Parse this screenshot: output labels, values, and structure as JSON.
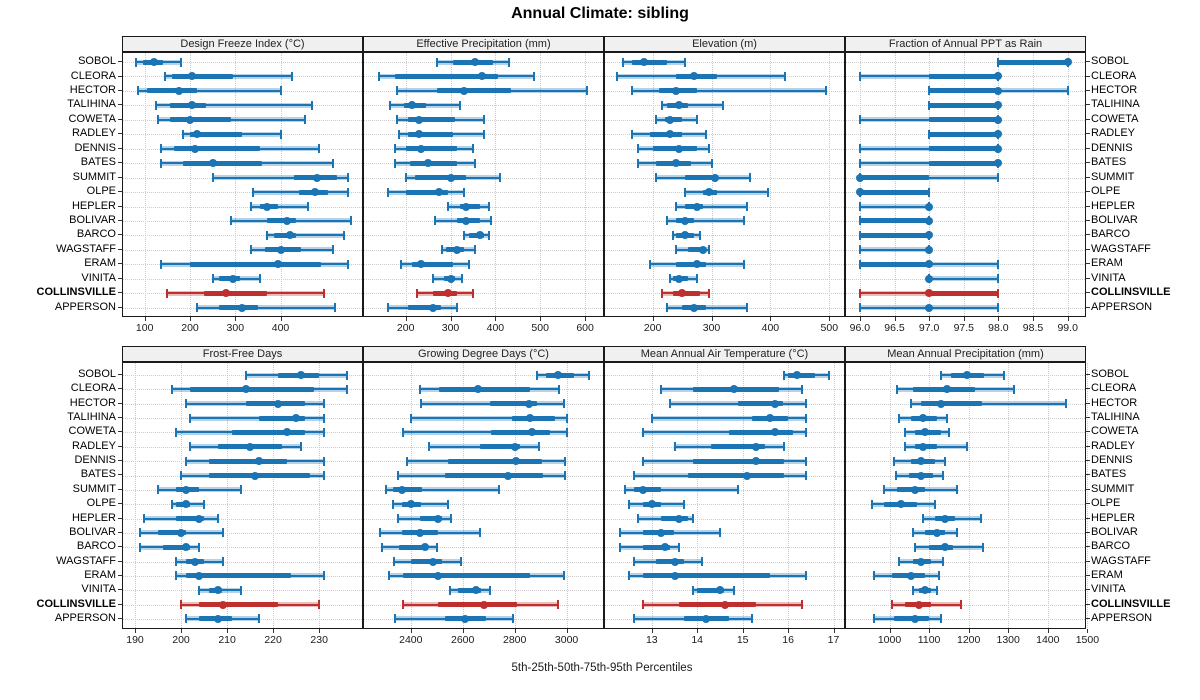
{
  "page": {
    "title": "Annual Climate: sibling",
    "caption": "5th-25th-50th-75th-95th Percentiles"
  },
  "colors": {
    "series": "#1b74b4",
    "series_light": "rgba(27,116,180,0.32)",
    "highlight": "#be2f2d",
    "highlight_light": "rgba(190,47,45,0.32)",
    "grid": "#c9c9c9",
    "strip_bg": "#f0f0f0",
    "border": "#1a1a1a"
  },
  "stations": [
    "SOBOL",
    "CLEORA",
    "HECTOR",
    "TALIHINA",
    "COWETA",
    "RADLEY",
    "DENNIS",
    "BATES",
    "SUMMIT",
    "OLPE",
    "HEPLER",
    "BOLIVAR",
    "BARCO",
    "WAGSTAFF",
    "ERAM",
    "VINITA",
    "COLLINSVILLE",
    "APPERSON"
  ],
  "highlight_station": "COLLINSVILLE",
  "chart_data": {
    "type": "dotplot-percentiles-trellis",
    "percentiles": [
      5,
      25,
      50,
      75,
      95
    ],
    "grid": "2 rows x 4 cols",
    "panels": [
      {
        "title": "Design Freeze Index (°C)",
        "xlim": [
          52,
          580
        ],
        "ticks": [
          100,
          200,
          300,
          400
        ],
        "tick_labels": [
          "100",
          "200",
          "300",
          "400"
        ],
        "values": [
          [
            80,
            95,
            120,
            140,
            180
          ],
          [
            145,
            160,
            205,
            295,
            425
          ],
          [
            85,
            105,
            175,
            215,
            400
          ],
          [
            125,
            155,
            205,
            235,
            470
          ],
          [
            130,
            155,
            200,
            290,
            455
          ],
          [
            185,
            200,
            215,
            315,
            400
          ],
          [
            135,
            165,
            210,
            355,
            485
          ],
          [
            135,
            185,
            250,
            360,
            515
          ],
          [
            250,
            430,
            480,
            525,
            550
          ],
          [
            340,
            440,
            475,
            505,
            550
          ],
          [
            335,
            355,
            370,
            395,
            460
          ],
          [
            290,
            370,
            415,
            435,
            555
          ],
          [
            370,
            385,
            420,
            435,
            540
          ],
          [
            335,
            365,
            400,
            445,
            515
          ],
          [
            135,
            200,
            395,
            490,
            550
          ],
          [
            250,
            265,
            295,
            310,
            355
          ],
          [
            150,
            230,
            280,
            370,
            495
          ],
          [
            215,
            265,
            315,
            350,
            520
          ]
        ]
      },
      {
        "title": "Effective Precipitation (mm)",
        "xlim": [
          107,
          640
        ],
        "ticks": [
          200,
          300,
          400,
          500,
          600
        ],
        "tick_labels": [
          "200",
          "300",
          "400",
          "500",
          "600"
        ],
        "values": [
          [
            270,
            305,
            355,
            395,
            430
          ],
          [
            140,
            175,
            370,
            405,
            485
          ],
          [
            180,
            270,
            330,
            435,
            605
          ],
          [
            165,
            195,
            215,
            245,
            320
          ],
          [
            180,
            205,
            230,
            310,
            375
          ],
          [
            185,
            205,
            230,
            305,
            375
          ],
          [
            175,
            200,
            235,
            315,
            350
          ],
          [
            175,
            210,
            250,
            315,
            355
          ],
          [
            200,
            220,
            300,
            335,
            410
          ],
          [
            160,
            200,
            275,
            295,
            330
          ],
          [
            295,
            320,
            335,
            365,
            385
          ],
          [
            265,
            315,
            335,
            365,
            390
          ],
          [
            330,
            340,
            365,
            375,
            385
          ],
          [
            280,
            290,
            315,
            330,
            355
          ],
          [
            190,
            215,
            235,
            305,
            340
          ],
          [
            260,
            285,
            300,
            310,
            325
          ],
          [
            225,
            260,
            295,
            315,
            350
          ],
          [
            160,
            205,
            260,
            280,
            315
          ]
        ]
      },
      {
        "title": "Elevation (m)",
        "xlim": [
          119,
          525
        ],
        "ticks": [
          200,
          300,
          400,
          500
        ],
        "tick_labels": [
          "200",
          "300",
          "400",
          "500"
        ],
        "values": [
          [
            150,
            165,
            185,
            225,
            255
          ],
          [
            140,
            240,
            270,
            310,
            425
          ],
          [
            165,
            210,
            240,
            275,
            495
          ],
          [
            215,
            225,
            245,
            260,
            320
          ],
          [
            205,
            220,
            230,
            250,
            275
          ],
          [
            165,
            195,
            230,
            250,
            290
          ],
          [
            175,
            200,
            245,
            275,
            295
          ],
          [
            175,
            205,
            240,
            265,
            300
          ],
          [
            205,
            255,
            305,
            310,
            365
          ],
          [
            255,
            285,
            295,
            310,
            395
          ],
          [
            240,
            255,
            275,
            285,
            360
          ],
          [
            225,
            240,
            255,
            270,
            355
          ],
          [
            235,
            240,
            255,
            270,
            280
          ],
          [
            240,
            260,
            285,
            290,
            295
          ],
          [
            195,
            240,
            275,
            290,
            355
          ],
          [
            230,
            235,
            245,
            260,
            275
          ],
          [
            215,
            235,
            250,
            280,
            295
          ],
          [
            225,
            250,
            270,
            290,
            360
          ]
        ]
      },
      {
        "title": "Fraction of Annual PPT as Rain",
        "xlim": [
          95.8,
          99.25
        ],
        "ticks": [
          96.0,
          96.5,
          97.0,
          97.5,
          98.0,
          98.5,
          99.0
        ],
        "tick_labels": [
          "96.0",
          "96.5",
          "97.0",
          "97.5",
          "98.0",
          "98.5",
          "99.0"
        ],
        "values": [
          [
            98,
            98,
            99,
            99,
            99
          ],
          [
            96,
            97,
            98,
            98,
            98
          ],
          [
            97,
            97,
            98,
            98,
            99
          ],
          [
            97,
            97,
            98,
            98,
            98
          ],
          [
            96,
            97,
            98,
            98,
            98
          ],
          [
            97,
            97,
            98,
            98,
            98
          ],
          [
            96,
            97,
            98,
            98,
            98
          ],
          [
            96,
            97,
            98,
            98,
            98
          ],
          [
            96,
            96,
            96,
            97,
            98
          ],
          [
            96,
            96,
            96,
            97,
            97
          ],
          [
            96,
            97,
            97,
            97,
            97
          ],
          [
            96,
            96,
            97,
            97,
            97
          ],
          [
            96,
            96,
            97,
            97,
            97
          ],
          [
            96,
            97,
            97,
            97,
            97
          ],
          [
            96,
            96,
            97,
            97,
            98
          ],
          [
            97,
            97,
            97,
            97,
            98
          ],
          [
            96,
            97,
            97,
            98,
            98
          ],
          [
            96,
            97,
            97,
            97,
            98
          ]
        ]
      },
      {
        "title": "Frost-Free Days",
        "xlim": [
          187.4,
          239.3
        ],
        "ticks": [
          190,
          200,
          210,
          220,
          230
        ],
        "tick_labels": [
          "190",
          "200",
          "210",
          "220",
          "230"
        ],
        "values": [
          [
            214,
            221,
            226,
            230,
            236
          ],
          [
            198,
            202,
            214,
            229,
            236
          ],
          [
            201,
            214,
            221,
            227,
            231
          ],
          [
            202,
            217,
            225,
            227,
            231
          ],
          [
            199,
            211,
            223,
            227,
            231
          ],
          [
            202,
            208,
            215,
            222,
            226
          ],
          [
            201,
            206,
            217,
            223,
            231
          ],
          [
            200,
            206,
            216,
            228,
            231
          ],
          [
            195,
            199,
            201,
            204,
            213
          ],
          [
            198,
            199,
            201,
            202,
            205
          ],
          [
            192,
            199,
            204,
            205,
            208
          ],
          [
            191,
            195,
            200,
            201,
            209
          ],
          [
            191,
            196,
            201,
            202,
            204
          ],
          [
            199,
            201,
            203,
            205,
            209
          ],
          [
            199,
            201,
            204,
            224,
            231
          ],
          [
            204,
            206,
            208,
            209,
            213
          ],
          [
            200,
            204,
            209,
            221,
            230
          ],
          [
            201,
            204,
            208,
            211,
            217
          ]
        ]
      },
      {
        "title": "Growing Degree Days (°C)",
        "xlim": [
          2220,
          3140
        ],
        "ticks": [
          2400,
          2600,
          2800,
          3000
        ],
        "tick_labels": [
          "2400",
          "2600",
          "2800",
          "3000"
        ],
        "values": [
          [
            2885,
            2920,
            2965,
            3030,
            3085
          ],
          [
            2435,
            2510,
            2660,
            2860,
            2970
          ],
          [
            2440,
            2705,
            2855,
            2885,
            2990
          ],
          [
            2400,
            2790,
            2860,
            2955,
            3000
          ],
          [
            2370,
            2710,
            2865,
            2935,
            3000
          ],
          [
            2470,
            2665,
            2800,
            2820,
            2895
          ],
          [
            2385,
            2545,
            2805,
            2905,
            2995
          ],
          [
            2350,
            2530,
            2775,
            2910,
            2995
          ],
          [
            2305,
            2330,
            2365,
            2445,
            2740
          ],
          [
            2330,
            2365,
            2400,
            2440,
            2545
          ],
          [
            2350,
            2435,
            2505,
            2520,
            2555
          ],
          [
            2280,
            2365,
            2435,
            2505,
            2665
          ],
          [
            2290,
            2355,
            2455,
            2465,
            2500
          ],
          [
            2335,
            2400,
            2485,
            2520,
            2595
          ],
          [
            2315,
            2370,
            2505,
            2860,
            2990
          ],
          [
            2550,
            2580,
            2650,
            2670,
            2705
          ],
          [
            2370,
            2505,
            2680,
            2810,
            2965
          ],
          [
            2340,
            2530,
            2610,
            2690,
            2795
          ]
        ]
      },
      {
        "title": "Mean Annual Air Temperature (°C)",
        "xlim": [
          11.97,
          17.23
        ],
        "ticks": [
          13,
          14,
          15,
          16,
          17
        ],
        "tick_labels": [
          "13",
          "14",
          "15",
          "16",
          "17"
        ],
        "values": [
          [
            15.9,
            16.0,
            16.2,
            16.6,
            16.9
          ],
          [
            13.2,
            13.9,
            14.8,
            15.8,
            16.3
          ],
          [
            13.4,
            14.9,
            15.7,
            15.9,
            16.4
          ],
          [
            13.0,
            15.2,
            15.6,
            16.0,
            16.4
          ],
          [
            12.8,
            14.7,
            15.7,
            16.1,
            16.4
          ],
          [
            13.5,
            14.3,
            15.3,
            15.5,
            15.9
          ],
          [
            12.8,
            13.9,
            15.3,
            15.9,
            16.4
          ],
          [
            12.6,
            13.8,
            15.1,
            15.9,
            16.4
          ],
          [
            12.4,
            12.6,
            12.8,
            13.2,
            14.9
          ],
          [
            12.5,
            12.8,
            13.0,
            13.2,
            13.7
          ],
          [
            12.7,
            13.2,
            13.6,
            13.8,
            13.9
          ],
          [
            12.3,
            12.8,
            13.2,
            13.5,
            14.5
          ],
          [
            12.3,
            12.8,
            13.3,
            13.4,
            13.6
          ],
          [
            12.6,
            13.1,
            13.5,
            13.7,
            14.1
          ],
          [
            12.5,
            12.8,
            13.5,
            15.6,
            16.4
          ],
          [
            13.9,
            14.0,
            14.5,
            14.6,
            14.8
          ],
          [
            12.8,
            13.6,
            14.6,
            15.3,
            16.3
          ],
          [
            12.6,
            13.7,
            14.2,
            14.7,
            15.2
          ]
        ]
      },
      {
        "title": "Mean Annual Precipitation (mm)",
        "xlim": [
          890,
          1494
        ],
        "ticks": [
          1000,
          1100,
          1200,
          1300,
          1400,
          1500
        ],
        "tick_labels": [
          "1000",
          "1100",
          "1200",
          "1300",
          "1400",
          "1500"
        ],
        "values": [
          [
            1130,
            1155,
            1195,
            1240,
            1290
          ],
          [
            1020,
            1060,
            1145,
            1215,
            1315
          ],
          [
            1055,
            1080,
            1130,
            1235,
            1445
          ],
          [
            1025,
            1055,
            1085,
            1120,
            1145
          ],
          [
            1040,
            1065,
            1090,
            1130,
            1150
          ],
          [
            1040,
            1065,
            1085,
            1120,
            1195
          ],
          [
            1010,
            1055,
            1080,
            1115,
            1140
          ],
          [
            1015,
            1050,
            1080,
            1110,
            1135
          ],
          [
            985,
            1020,
            1065,
            1090,
            1170
          ],
          [
            955,
            985,
            1030,
            1070,
            1115
          ],
          [
            1085,
            1115,
            1140,
            1165,
            1230
          ],
          [
            1060,
            1090,
            1120,
            1140,
            1170
          ],
          [
            1065,
            1100,
            1140,
            1160,
            1235
          ],
          [
            1025,
            1060,
            1080,
            1105,
            1135
          ],
          [
            960,
            1005,
            1055,
            1090,
            1125
          ],
          [
            1060,
            1075,
            1090,
            1105,
            1120
          ],
          [
            1005,
            1040,
            1075,
            1105,
            1180
          ],
          [
            960,
            1010,
            1065,
            1100,
            1130
          ]
        ]
      }
    ]
  }
}
